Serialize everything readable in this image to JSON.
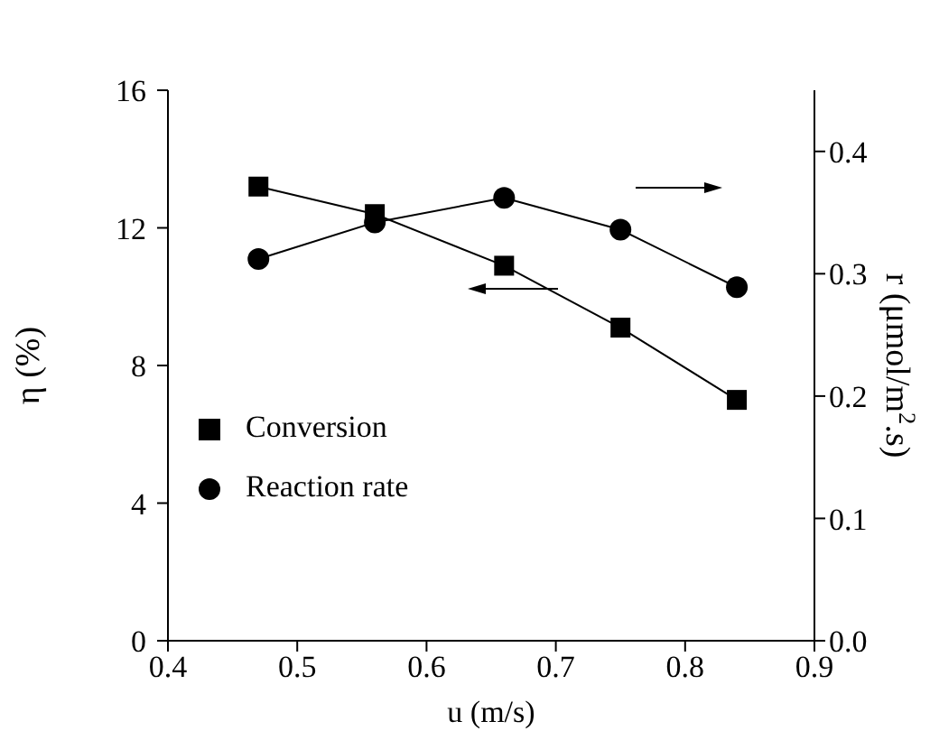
{
  "chart_data": {
    "type": "line",
    "xlabel": "u (m/s)",
    "ylabel": "η (%)",
    "y2label": "r (μmol/m$^{2}$.s)",
    "x": [
      0.47,
      0.56,
      0.66,
      0.75,
      0.84
    ],
    "series": [
      {
        "name": "Conversion",
        "color": "#000000",
        "values": [
          13.2,
          12.4,
          10.9,
          9.1,
          7.0
        ],
        "marker": "square"
      },
      {
        "name": "Reaction rate",
        "color": "#000000",
        "values": [
          0.312,
          0.342,
          0.362,
          0.336,
          0.289
        ],
        "marker": "circle",
        "axis": "y2"
      }
    ],
    "xlim": [
      0.4,
      0.9
    ],
    "xticks": [
      0.4,
      0.5,
      0.6,
      0.7,
      0.8,
      0.9
    ],
    "ylim": [
      0,
      16
    ],
    "yticks": [
      0,
      4,
      8,
      12,
      16
    ],
    "y2lim": [
      0,
      0.45
    ],
    "y2ticks": [
      {
        "value": 0,
        "label": "0.0"
      },
      {
        "value": 0.1,
        "label": "0.1"
      },
      {
        "value": 0.2,
        "label": "0.2"
      },
      {
        "value": 0.3,
        "label": "0.3"
      },
      {
        "value": 0.4,
        "label": "0.4"
      }
    ],
    "grid": false,
    "legend": "bottom left",
    "line_style": "solid"
  }
}
